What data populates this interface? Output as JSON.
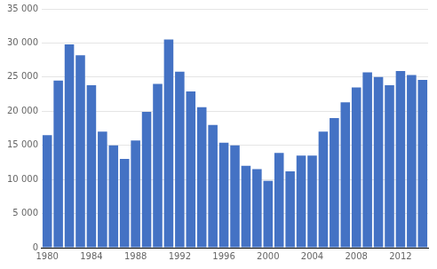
{
  "chart_data": {
    "type": "bar",
    "categories": [
      "1980",
      null,
      null,
      null,
      "1984",
      null,
      null,
      null,
      "1988",
      null,
      null,
      null,
      "1992",
      null,
      null,
      null,
      "1996",
      null,
      null,
      null,
      "2000",
      null,
      null,
      null,
      "2004",
      null,
      null,
      null,
      "2008",
      null,
      null,
      null,
      "2012",
      null,
      null
    ],
    "values": [
      16500,
      24500,
      29800,
      28200,
      23800,
      17000,
      15000,
      13000,
      15700,
      19900,
      24000,
      30500,
      25800,
      22900,
      20600,
      18000,
      15400,
      15000,
      12000,
      11500,
      9800,
      13900,
      11200,
      13500,
      13500,
      17000,
      19000,
      21300,
      23500,
      25700,
      25000,
      23800,
      25900,
      25300,
      24600
    ],
    "color": "#4472c4",
    "ylim": [
      0,
      35000
    ],
    "yticks": [
      0,
      {
        "value": 5000,
        "label": "5 000"
      },
      {
        "value": 10000,
        "label": "10 000"
      },
      {
        "value": 15000,
        "label": "15 000"
      },
      {
        "value": 20000,
        "label": "20 000"
      },
      {
        "value": 25000,
        "label": "25 000"
      },
      {
        "value": 30000,
        "label": "30 000"
      },
      {
        "value": 35000,
        "label": "35 000"
      }
    ],
    "grid": "y"
  }
}
